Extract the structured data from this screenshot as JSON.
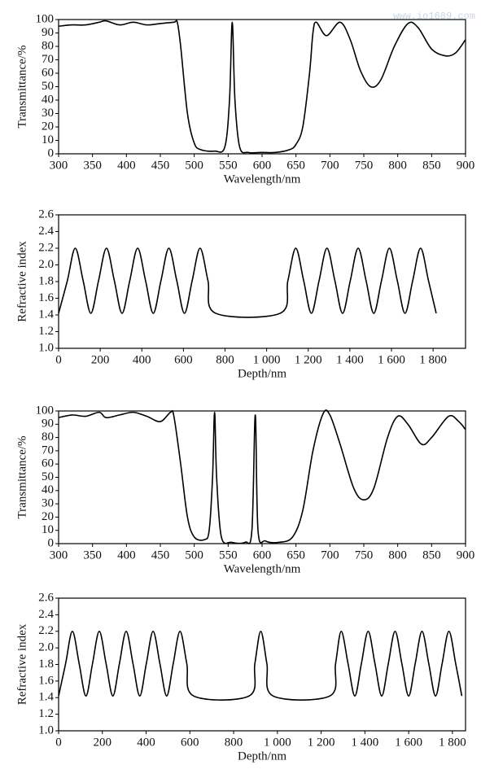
{
  "watermark": "www.io1689.com",
  "chart_data": [
    {
      "type": "line",
      "color": "#000000",
      "ylabel": "Transmittance/%",
      "xlabel": "Wavelength/nm",
      "xlim": [
        300,
        900
      ],
      "ylim": [
        0,
        100
      ],
      "xticks": [
        300,
        350,
        400,
        450,
        500,
        550,
        600,
        650,
        700,
        750,
        800,
        850,
        900
      ],
      "yticks": [
        0,
        10,
        20,
        30,
        40,
        50,
        60,
        70,
        80,
        90,
        100
      ],
      "x": [
        300,
        320,
        340,
        360,
        370,
        390,
        410,
        430,
        450,
        470,
        475,
        480,
        490,
        500,
        510,
        530,
        545,
        552,
        556,
        560,
        567,
        580,
        600,
        620,
        640,
        650,
        660,
        670,
        675,
        680,
        695,
        715,
        730,
        745,
        760,
        775,
        795,
        815,
        830,
        850,
        870,
        885,
        900
      ],
      "values": [
        95,
        96,
        96,
        98,
        99,
        96,
        98,
        96,
        97,
        98,
        98,
        80,
        30,
        8,
        3,
        2,
        5,
        40,
        98,
        40,
        5,
        1,
        1,
        1,
        3,
        7,
        20,
        60,
        90,
        98,
        88,
        98,
        85,
        62,
        50,
        55,
        80,
        97,
        94,
        78,
        73,
        75,
        85
      ]
    },
    {
      "type": "line",
      "color": "#000000",
      "ylabel": "Refractive index",
      "xlabel": "Depth/nm",
      "xlim": [
        0,
        1956
      ],
      "ylim": [
        1.0,
        2.6
      ],
      "xticks": [
        0,
        200,
        400,
        600,
        800,
        {
          "value": 1000,
          "label": "1 000"
        },
        {
          "value": 1200,
          "label": "1 200"
        },
        {
          "value": 1400,
          "label": "1 400"
        },
        {
          "value": 1600,
          "label": "1 600"
        },
        {
          "value": 1800,
          "label": "1 800"
        }
      ],
      "yticks": [
        {
          "value": 1,
          "label": "1.0"
        },
        1.2,
        1.4,
        1.6,
        1.8,
        {
          "value": 2,
          "label": "2.0"
        },
        2.2,
        2.4,
        2.6
      ],
      "x": [
        0,
        42,
        80,
        118,
        155,
        192,
        230,
        268,
        305,
        342,
        380,
        418,
        455,
        492,
        530,
        568,
        605,
        642,
        680,
        718,
        755,
        1065,
        1102,
        1140,
        1178,
        1215,
        1252,
        1290,
        1328,
        1365,
        1402,
        1440,
        1478,
        1515,
        1552,
        1590,
        1628,
        1665,
        1702,
        1740,
        1778,
        1815
      ],
      "values": [
        1.42,
        1.81,
        2.2,
        1.81,
        1.42,
        1.81,
        2.2,
        1.81,
        1.42,
        1.81,
        2.2,
        1.81,
        1.42,
        1.81,
        2.2,
        1.81,
        1.42,
        1.81,
        2.2,
        1.81,
        1.42,
        1.42,
        1.81,
        2.2,
        1.81,
        1.42,
        1.81,
        2.2,
        1.81,
        1.42,
        1.81,
        2.2,
        1.81,
        1.42,
        1.81,
        2.2,
        1.81,
        1.42,
        1.81,
        2.2,
        1.81,
        1.42
      ]
    },
    {
      "type": "line",
      "color": "#000000",
      "ylabel": "Transmittance/%",
      "xlabel": "Wavelength/nm",
      "xlim": [
        300,
        900
      ],
      "ylim": [
        0,
        100
      ],
      "xticks": [
        300,
        350,
        400,
        450,
        500,
        550,
        600,
        650,
        700,
        750,
        800,
        850,
        900
      ],
      "yticks": [
        0,
        10,
        20,
        30,
        40,
        50,
        60,
        70,
        80,
        90,
        100
      ],
      "x": [
        300,
        320,
        340,
        360,
        370,
        390,
        410,
        430,
        450,
        465,
        470,
        480,
        490,
        500,
        515,
        522,
        527,
        530,
        533,
        540,
        555,
        575,
        585,
        590,
        594,
        605,
        625,
        645,
        660,
        675,
        690,
        700,
        715,
        735,
        750,
        765,
        785,
        800,
        815,
        835,
        850,
        875,
        890,
        900
      ],
      "values": [
        95,
        97,
        96,
        99,
        95,
        97,
        99,
        96,
        92,
        99,
        96,
        60,
        20,
        5,
        3,
        10,
        50,
        99,
        50,
        5,
        1,
        1,
        10,
        97,
        10,
        2,
        1,
        5,
        25,
        70,
        98,
        97,
        75,
        42,
        33,
        42,
        80,
        96,
        90,
        75,
        80,
        96,
        92,
        86
      ]
    },
    {
      "type": "line",
      "color": "#000000",
      "ylabel": "Refractive index",
      "xlabel": "Depth/nm",
      "xlim": [
        0,
        1860
      ],
      "ylim": [
        1.0,
        2.6
      ],
      "xticks": [
        0,
        200,
        400,
        600,
        800,
        {
          "value": 1000,
          "label": "1 000"
        },
        {
          "value": 1200,
          "label": "1 200"
        },
        {
          "value": 1400,
          "label": "1 400"
        },
        {
          "value": 1600,
          "label": "1 600"
        },
        {
          "value": 1800,
          "label": "1 800"
        }
      ],
      "yticks": [
        {
          "value": 1,
          "label": "1.0"
        },
        1.2,
        1.4,
        1.6,
        1.8,
        {
          "value": 2,
          "label": "2.0"
        },
        2.2,
        2.4,
        2.6
      ],
      "x": [
        0,
        32,
        63,
        94,
        125,
        155,
        186,
        217,
        248,
        278,
        309,
        340,
        371,
        401,
        432,
        463,
        494,
        524,
        555,
        586,
        617,
        871,
        897,
        924,
        952,
        980,
        1240,
        1266,
        1292,
        1323,
        1354,
        1384,
        1415,
        1446,
        1477,
        1507,
        1538,
        1569,
        1600,
        1630,
        1661,
        1692,
        1723,
        1753,
        1784,
        1815,
        1843
      ],
      "values": [
        1.42,
        1.81,
        2.2,
        1.81,
        1.42,
        1.81,
        2.2,
        1.81,
        1.42,
        1.81,
        2.2,
        1.81,
        1.42,
        1.81,
        2.2,
        1.81,
        1.42,
        1.81,
        2.2,
        1.81,
        1.42,
        1.42,
        1.81,
        2.2,
        1.81,
        1.42,
        1.42,
        1.81,
        2.2,
        1.81,
        1.42,
        1.81,
        2.2,
        1.81,
        1.42,
        1.81,
        2.2,
        1.81,
        1.42,
        1.81,
        2.2,
        1.81,
        1.42,
        1.81,
        2.2,
        1.81,
        1.42
      ]
    }
  ]
}
